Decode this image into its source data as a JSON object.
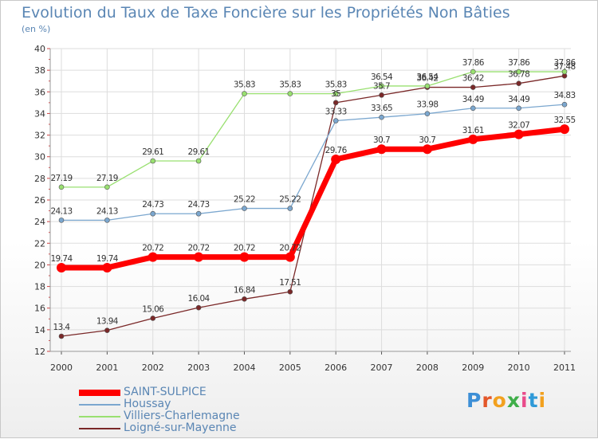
{
  "header": {
    "title": "Evolution du Taux de Taxe Foncière sur les Propriétés Non Bâties",
    "unit": "(en %)"
  },
  "logo": {
    "text": "Proxiti",
    "letters": [
      "P",
      "r",
      "o",
      "x",
      "i",
      "t",
      "i"
    ]
  },
  "chart_data": {
    "type": "line",
    "title": "Evolution du Taux de Taxe Foncière sur les Propriétés Non Bâties",
    "ylabel": "(en %)",
    "xlabel": "",
    "ylim": [
      12,
      40
    ],
    "yticks": [
      12,
      14,
      16,
      18,
      20,
      22,
      24,
      26,
      28,
      30,
      32,
      34,
      36,
      38,
      40
    ],
    "grid": true,
    "legend_position": "bottom-left",
    "categories": [
      "2000",
      "2001",
      "2002",
      "2003",
      "2004",
      "2005",
      "2006",
      "2007",
      "2008",
      "2009",
      "2010",
      "2011"
    ],
    "series": [
      {
        "name": "SAINT-SULPICE",
        "color": "#ff0000",
        "values": [
          19.74,
          19.74,
          20.72,
          20.72,
          20.72,
          20.72,
          29.76,
          30.7,
          30.7,
          31.61,
          32.07,
          32.55
        ],
        "labels": [
          "19.74",
          "19.74",
          "20.72",
          "20.72",
          "20.72",
          "20.72",
          "29.76",
          "30.7",
          "30.7",
          "31.61",
          "32.07",
          "32.55"
        ]
      },
      {
        "name": "Houssay",
        "color": "#7ba7cf",
        "values": [
          24.13,
          24.13,
          24.73,
          24.73,
          25.22,
          25.22,
          33.33,
          33.65,
          33.98,
          34.49,
          34.49,
          34.83
        ],
        "labels": [
          "24.13",
          "24.13",
          "24.73",
          "24.73",
          "25.22",
          "25.22",
          "33.33",
          "33.65",
          "33.98",
          "34.49",
          "34.49",
          "34.83"
        ]
      },
      {
        "name": "Villiers-Charlemagne",
        "color": "#99e070",
        "values": [
          27.19,
          27.19,
          29.61,
          29.61,
          35.83,
          35.83,
          35.83,
          36.54,
          36.54,
          37.86,
          37.86,
          37.86
        ],
        "labels": [
          "27.19",
          "27.19",
          "29.61",
          "29.61",
          "35.83",
          "35.83",
          "35.83",
          "36.54",
          "36.54",
          "37.86",
          "37.86",
          "37.86"
        ]
      },
      {
        "name": "Loigné-sur-Mayenne",
        "color": "#7a2828",
        "values": [
          13.4,
          13.94,
          15.06,
          16.04,
          16.84,
          17.51,
          35.0,
          35.7,
          36.42,
          36.42,
          36.78,
          37.48
        ],
        "labels": [
          "13.4",
          "13.94",
          "15.06",
          "16.04",
          "16.84",
          "17.51",
          "35",
          "35.7",
          "36.42",
          "36.42",
          "36.78",
          "37.48"
        ]
      }
    ]
  }
}
